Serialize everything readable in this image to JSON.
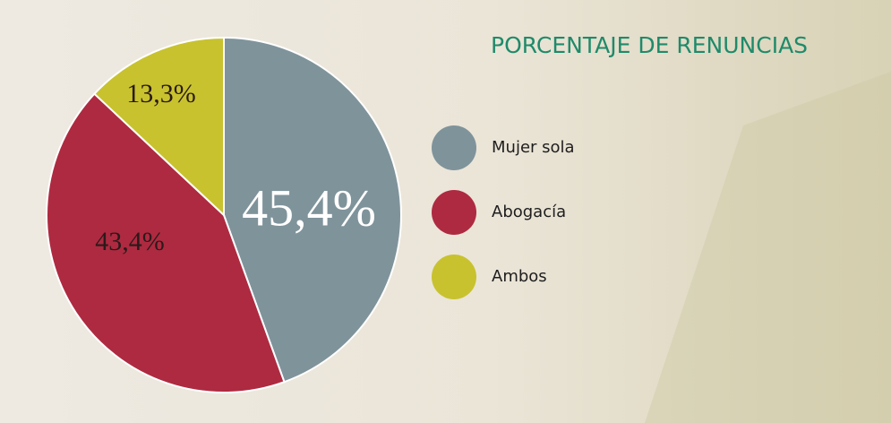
{
  "chart_data": {
    "type": "pie",
    "title": "PORCENTAJE DE RENUNCIAS",
    "categories": [
      "Mujer sola",
      "Abogacía",
      "Ambos"
    ],
    "values": [
      45.4,
      43.4,
      13.3
    ],
    "value_labels": [
      "45,4%",
      "43,4%",
      "13,3%"
    ],
    "colors": [
      "#7f939b",
      "#ae2a40",
      "#c8c22e"
    ]
  }
}
